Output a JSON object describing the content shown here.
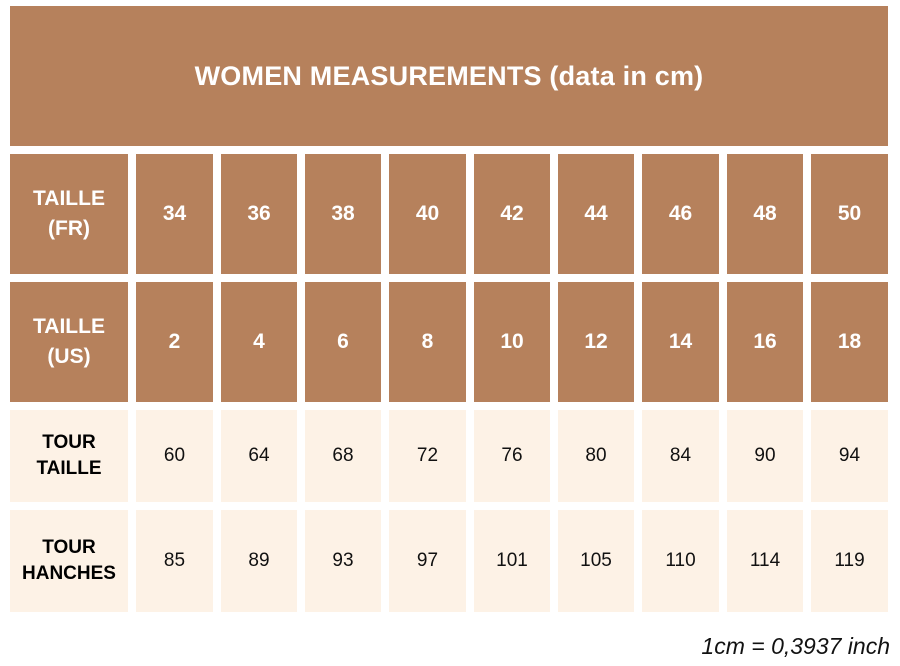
{
  "title": "WOMEN MEASUREMENTS (data in cm)",
  "rows": [
    {
      "label": [
        "TAILLE",
        "(FR)"
      ],
      "style": "dark",
      "values": [
        "34",
        "36",
        "38",
        "40",
        "42",
        "44",
        "46",
        "48",
        "50"
      ]
    },
    {
      "label": [
        "TAILLE",
        "(US)"
      ],
      "style": "dark",
      "values": [
        "2",
        "4",
        "6",
        "8",
        "10",
        "12",
        "14",
        "16",
        "18"
      ]
    },
    {
      "label": [
        "TOUR",
        "TAILLE"
      ],
      "style": "light",
      "values": [
        "60",
        "64",
        "68",
        "72",
        "76",
        "80",
        "84",
        "90",
        "94"
      ]
    },
    {
      "label": [
        "TOUR",
        "HANCHES"
      ],
      "style": "light",
      "values": [
        "85",
        "89",
        "93",
        "97",
        "101",
        "105",
        "110",
        "114",
        "119"
      ]
    }
  ],
  "footnote": "1cm = 0,3937 inch",
  "colors": {
    "dark": "#b6815c",
    "light": "#fdf2e6"
  }
}
